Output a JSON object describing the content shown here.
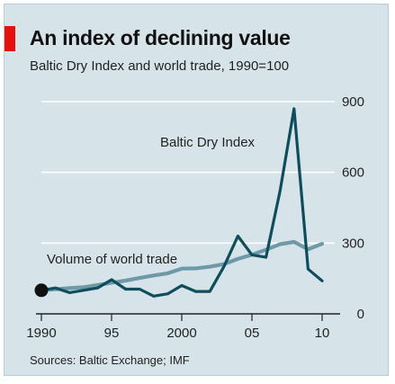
{
  "title": "An index of declining value",
  "subtitle": "Baltic Dry Index and world trade, 1990=100",
  "source": "Sources: Baltic Exchange; IMF",
  "colors": {
    "background": "#d6e4ea",
    "accent": "#e3120b",
    "baltic": "#0f4c5c",
    "trade": "#6e9aa8",
    "grid": "#ffffff"
  },
  "chart_data": {
    "type": "line",
    "title": "An index of declining value",
    "subtitle": "Baltic Dry Index and world trade, 1990=100",
    "xlabel": "",
    "ylabel": "",
    "xlim": [
      1990,
      2010
    ],
    "ylim": [
      0,
      900
    ],
    "x_ticks": [
      1990,
      1995,
      2000,
      2005,
      2010
    ],
    "x_tick_labels": [
      "1990",
      "95",
      "2000",
      "05",
      "10"
    ],
    "y_ticks": [
      0,
      300,
      600,
      900
    ],
    "y_tick_labels": [
      "0",
      "300",
      "600",
      "900"
    ],
    "grid": "horizontal",
    "y_axis_side": "right",
    "series": [
      {
        "name": "Baltic Dry Index",
        "x": [
          1990,
          1991,
          1992,
          1993,
          1994,
          1995,
          1996,
          1997,
          1998,
          1999,
          2000,
          2001,
          2002,
          2003,
          2004,
          2005,
          2006,
          2007,
          2008,
          2009,
          2010
        ],
        "y": [
          100,
          110,
          90,
          100,
          110,
          145,
          105,
          105,
          75,
          85,
          120,
          95,
          95,
          200,
          330,
          250,
          240,
          520,
          870,
          190,
          140
        ]
      },
      {
        "name": "Volume of world trade",
        "x": [
          1990,
          1991,
          1992,
          1993,
          1994,
          1995,
          1996,
          1997,
          1998,
          1999,
          2000,
          2001,
          2002,
          2003,
          2004,
          2005,
          2006,
          2007,
          2008,
          2009,
          2010
        ],
        "y": [
          100,
          104,
          109,
          113,
          122,
          132,
          141,
          152,
          163,
          172,
          192,
          193,
          200,
          211,
          233,
          251,
          272,
          295,
          305,
          274,
          297
        ]
      }
    ],
    "annotations": [
      {
        "text": "Baltic Dry Index",
        "series": "Baltic Dry Index"
      },
      {
        "text": "Volume of world trade",
        "series": "Volume of world trade"
      }
    ],
    "marker": {
      "x": 1990,
      "y": 100,
      "label": ""
    }
  }
}
